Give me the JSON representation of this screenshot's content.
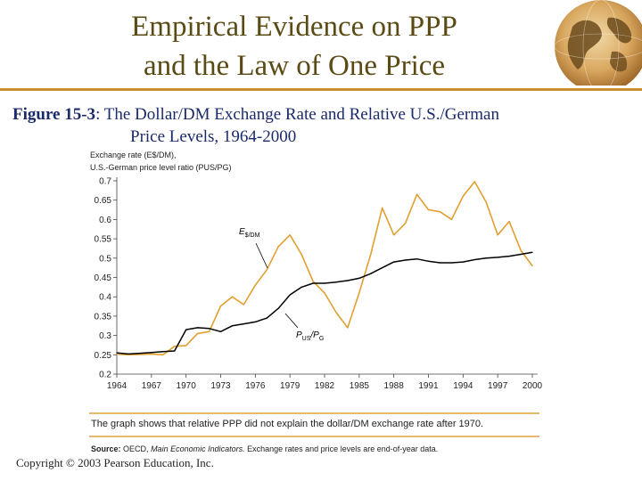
{
  "slide": {
    "title_line1": "Empirical Evidence on PPP",
    "title_line2": "and the Law of One Price",
    "figure_label": "Figure 15-3",
    "figure_sep": ": ",
    "figure_caption_line1": "The Dollar/DM Exchange Rate and Relative U.S./German",
    "figure_caption_line2": "Price Levels, 1964-2000",
    "note": "The graph shows that relative PPP did not explain the dollar/DM exchange rate after 1970.",
    "source_label": "Source:",
    "source_org": "OECD,",
    "source_pub": "Main Economic Indicators.",
    "source_rest": "Exchange rates and price levels are end-of-year data.",
    "copyright": "Copyright © 2003 Pearson Education, Inc.",
    "colors": {
      "title": "#5a4a14",
      "rule": "#c98f2e",
      "caption": "#1a2a6a"
    },
    "icons": [
      "globe-icon"
    ]
  },
  "chart_data": {
    "type": "line",
    "ylabel_line1": "Exchange rate (E$/DM),",
    "ylabel_line2": "U.S.-German price level ratio (PUS/PG)",
    "ylim": [
      0.2,
      0.7
    ],
    "xlim": [
      1964,
      2000
    ],
    "yticks": [
      "0.7",
      "0.65",
      "0.6",
      "0.55",
      "0.5",
      "0.45",
      "0.4",
      "0.35",
      "0.3",
      "0.25",
      "0.2"
    ],
    "xticks": [
      "1964",
      "1967",
      "1970",
      "1973",
      "1976",
      "1979",
      "1982",
      "1985",
      "1988",
      "1991",
      "1994",
      "1997",
      "2000"
    ],
    "grid": false,
    "series": [
      {
        "name": "E$/DM",
        "label_main": "E",
        "label_sub": "$/DM",
        "color": "#e0a030",
        "x": [
          1964,
          1965,
          1966,
          1967,
          1968,
          1969,
          1970,
          1971,
          1972,
          1973,
          1974,
          1975,
          1976,
          1977,
          1978,
          1979,
          1980,
          1981,
          1982,
          1983,
          1984,
          1985,
          1986,
          1987,
          1988,
          1989,
          1990,
          1991,
          1992,
          1993,
          1994,
          1995,
          1996,
          1997,
          1998,
          1999,
          2000
        ],
        "y": [
          0.252,
          0.25,
          0.251,
          0.252,
          0.25,
          0.272,
          0.274,
          0.305,
          0.31,
          0.376,
          0.4,
          0.38,
          0.43,
          0.47,
          0.53,
          0.56,
          0.51,
          0.44,
          0.41,
          0.36,
          0.32,
          0.41,
          0.51,
          0.63,
          0.56,
          0.59,
          0.665,
          0.625,
          0.62,
          0.6,
          0.66,
          0.698,
          0.645,
          0.56,
          0.595,
          0.52,
          0.48
        ]
      },
      {
        "name": "PUS/PG",
        "label_main": "P",
        "label_sub1": "US",
        "label_mid": "/P",
        "label_sub2": "G",
        "color": "#000000",
        "x": [
          1964,
          1965,
          1966,
          1967,
          1968,
          1969,
          1970,
          1971,
          1972,
          1973,
          1974,
          1975,
          1976,
          1977,
          1978,
          1979,
          1980,
          1981,
          1982,
          1983,
          1984,
          1985,
          1986,
          1987,
          1988,
          1989,
          1990,
          1991,
          1992,
          1993,
          1994,
          1995,
          1996,
          1997,
          1998,
          1999,
          2000
        ],
        "y": [
          0.255,
          0.252,
          0.254,
          0.256,
          0.258,
          0.26,
          0.315,
          0.32,
          0.318,
          0.31,
          0.325,
          0.33,
          0.335,
          0.345,
          0.37,
          0.405,
          0.425,
          0.435,
          0.435,
          0.438,
          0.442,
          0.448,
          0.46,
          0.475,
          0.49,
          0.495,
          0.498,
          0.492,
          0.488,
          0.488,
          0.49,
          0.496,
          0.5,
          0.502,
          0.505,
          0.51,
          0.515
        ]
      }
    ]
  }
}
